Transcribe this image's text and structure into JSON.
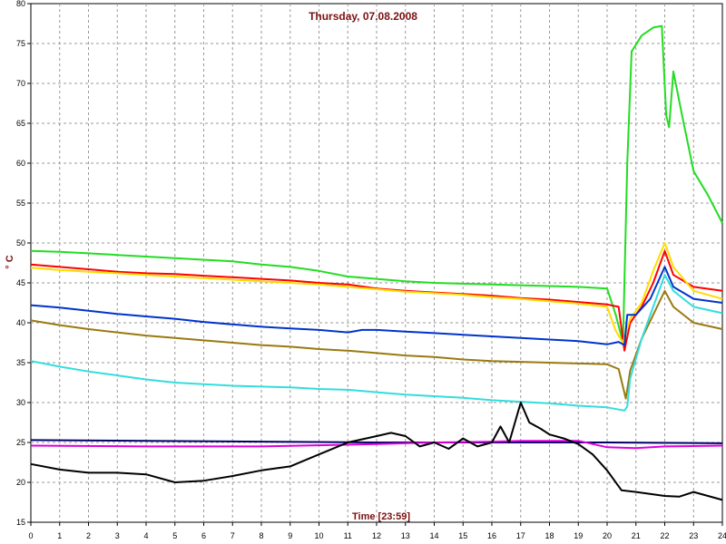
{
  "chart_data": {
    "type": "line",
    "title": "Thursday, 07.08.2008",
    "xlabel": "Time [23:59]",
    "ylabel": "° C",
    "xlim": [
      0,
      24
    ],
    "ylim": [
      15,
      80
    ],
    "x_ticks": [
      0,
      1,
      2,
      3,
      4,
      5,
      6,
      7,
      8,
      9,
      10,
      11,
      12,
      13,
      14,
      15,
      16,
      17,
      18,
      19,
      20,
      21,
      22,
      23,
      24
    ],
    "y_ticks": [
      15,
      20,
      25,
      30,
      35,
      40,
      45,
      50,
      55,
      60,
      65,
      70,
      75,
      80
    ],
    "grid": true,
    "series": [
      {
        "color": "#22dd22",
        "points": [
          [
            0,
            49
          ],
          [
            1,
            48.9
          ],
          [
            2,
            48.7
          ],
          [
            3,
            48.5
          ],
          [
            4,
            48.3
          ],
          [
            5,
            48.1
          ],
          [
            6,
            47.9
          ],
          [
            7,
            47.7
          ],
          [
            8,
            47.3
          ],
          [
            9,
            47
          ],
          [
            10,
            46.5
          ],
          [
            11,
            45.8
          ],
          [
            12,
            45.5
          ],
          [
            13,
            45.2
          ],
          [
            14,
            45
          ],
          [
            15,
            44.9
          ],
          [
            16,
            44.8
          ],
          [
            17,
            44.7
          ],
          [
            18,
            44.6
          ],
          [
            19,
            44.5
          ],
          [
            20,
            44.3
          ],
          [
            20.3,
            41
          ],
          [
            20.55,
            37.5
          ],
          [
            20.7,
            60
          ],
          [
            20.85,
            74
          ],
          [
            21.2,
            76
          ],
          [
            21.6,
            77
          ],
          [
            21.9,
            77.2
          ],
          [
            22.05,
            66
          ],
          [
            22.15,
            64.5
          ],
          [
            22.3,
            71.5
          ],
          [
            22.6,
            66
          ],
          [
            23,
            59
          ],
          [
            23.5,
            56
          ],
          [
            24,
            52.5
          ]
        ]
      },
      {
        "color": "#ff0000",
        "points": [
          [
            0,
            47.3
          ],
          [
            1,
            47
          ],
          [
            2,
            46.7
          ],
          [
            3,
            46.4
          ],
          [
            4,
            46.2
          ],
          [
            5,
            46.1
          ],
          [
            6,
            45.9
          ],
          [
            7,
            45.7
          ],
          [
            8,
            45.5
          ],
          [
            9,
            45.3
          ],
          [
            10,
            45
          ],
          [
            11,
            44.8
          ],
          [
            12,
            44.3
          ],
          [
            13,
            44
          ],
          [
            14,
            43.8
          ],
          [
            15,
            43.6
          ],
          [
            16,
            43.4
          ],
          [
            17,
            43.1
          ],
          [
            18,
            42.9
          ],
          [
            19,
            42.6
          ],
          [
            20,
            42.3
          ],
          [
            20.4,
            42
          ],
          [
            20.6,
            36.5
          ],
          [
            20.8,
            40
          ],
          [
            21.2,
            42
          ],
          [
            21.6,
            45
          ],
          [
            22,
            49
          ],
          [
            22.3,
            46
          ],
          [
            23,
            44.5
          ],
          [
            24,
            44
          ]
        ]
      },
      {
        "color": "#ffdd00",
        "points": [
          [
            0,
            46.9
          ],
          [
            1,
            46.6
          ],
          [
            2,
            46.4
          ],
          [
            3,
            46.2
          ],
          [
            4,
            46
          ],
          [
            5,
            45.8
          ],
          [
            6,
            45.6
          ],
          [
            7,
            45.4
          ],
          [
            8,
            45.2
          ],
          [
            9,
            45
          ],
          [
            10,
            44.8
          ],
          [
            11,
            44.5
          ],
          [
            12,
            44.2
          ],
          [
            13,
            43.9
          ],
          [
            14,
            43.7
          ],
          [
            15,
            43.5
          ],
          [
            16,
            43.2
          ],
          [
            17,
            43
          ],
          [
            18,
            42.7
          ],
          [
            19,
            42.4
          ],
          [
            20,
            42
          ],
          [
            20.3,
            39
          ],
          [
            20.55,
            37.5
          ],
          [
            20.8,
            40.5
          ],
          [
            21.2,
            42.5
          ],
          [
            21.6,
            46.5
          ],
          [
            22,
            50
          ],
          [
            22.3,
            47
          ],
          [
            23,
            44
          ],
          [
            24,
            43
          ]
        ]
      },
      {
        "color": "#0033cc",
        "points": [
          [
            0,
            42.2
          ],
          [
            1,
            41.9
          ],
          [
            2,
            41.5
          ],
          [
            3,
            41.1
          ],
          [
            4,
            40.8
          ],
          [
            5,
            40.5
          ],
          [
            6,
            40.1
          ],
          [
            7,
            39.8
          ],
          [
            8,
            39.5
          ],
          [
            9,
            39.3
          ],
          [
            10,
            39.1
          ],
          [
            11,
            38.8
          ],
          [
            11.5,
            39.1
          ],
          [
            12,
            39.1
          ],
          [
            13,
            38.9
          ],
          [
            14,
            38.7
          ],
          [
            15,
            38.5
          ],
          [
            16,
            38.3
          ],
          [
            17,
            38.1
          ],
          [
            18,
            37.9
          ],
          [
            19,
            37.7
          ],
          [
            20,
            37.3
          ],
          [
            20.4,
            37.6
          ],
          [
            20.6,
            37.2
          ],
          [
            20.7,
            41
          ],
          [
            21,
            41
          ],
          [
            21.5,
            43
          ],
          [
            22,
            47
          ],
          [
            22.3,
            44.5
          ],
          [
            23,
            43
          ],
          [
            24,
            42.5
          ]
        ]
      },
      {
        "color": "#997a10",
        "points": [
          [
            0,
            40.3
          ],
          [
            1,
            39.7
          ],
          [
            2,
            39.2
          ],
          [
            3,
            38.8
          ],
          [
            4,
            38.4
          ],
          [
            5,
            38.1
          ],
          [
            6,
            37.8
          ],
          [
            7,
            37.5
          ],
          [
            8,
            37.2
          ],
          [
            9,
            37
          ],
          [
            10,
            36.7
          ],
          [
            11,
            36.5
          ],
          [
            12,
            36.2
          ],
          [
            13,
            35.9
          ],
          [
            14,
            35.7
          ],
          [
            15,
            35.4
          ],
          [
            16,
            35.2
          ],
          [
            17,
            35.1
          ],
          [
            18,
            35
          ],
          [
            19,
            34.9
          ],
          [
            20,
            34.8
          ],
          [
            20.4,
            34.2
          ],
          [
            20.65,
            30.5
          ],
          [
            20.8,
            34
          ],
          [
            21.2,
            38
          ],
          [
            21.6,
            41
          ],
          [
            22,
            44
          ],
          [
            22.3,
            42
          ],
          [
            23,
            40
          ],
          [
            24,
            39.2
          ]
        ]
      },
      {
        "color": "#33dddd",
        "points": [
          [
            0,
            35.2
          ],
          [
            1,
            34.5
          ],
          [
            2,
            33.9
          ],
          [
            3,
            33.4
          ],
          [
            4,
            32.9
          ],
          [
            5,
            32.5
          ],
          [
            6,
            32.3
          ],
          [
            7,
            32.1
          ],
          [
            8,
            32
          ],
          [
            9,
            31.9
          ],
          [
            10,
            31.7
          ],
          [
            11,
            31.6
          ],
          [
            12,
            31.3
          ],
          [
            13,
            31
          ],
          [
            14,
            30.8
          ],
          [
            15,
            30.6
          ],
          [
            16,
            30.3
          ],
          [
            17,
            30.1
          ],
          [
            18,
            29.9
          ],
          [
            19,
            29.6
          ],
          [
            20,
            29.4
          ],
          [
            20.6,
            29
          ],
          [
            20.7,
            29.5
          ],
          [
            20.8,
            33
          ],
          [
            21.2,
            38
          ],
          [
            21.6,
            42
          ],
          [
            22,
            46
          ],
          [
            22.3,
            44
          ],
          [
            23,
            42
          ],
          [
            24,
            41.2
          ]
        ]
      },
      {
        "color": "#000066",
        "points": [
          [
            0,
            25.3
          ],
          [
            4,
            25.2
          ],
          [
            8,
            25.1
          ],
          [
            12,
            25
          ],
          [
            16,
            25
          ],
          [
            20,
            25
          ],
          [
            24,
            24.9
          ]
        ]
      },
      {
        "color": "#dd00dd",
        "points": [
          [
            0,
            24.6
          ],
          [
            4,
            24.5
          ],
          [
            8,
            24.5
          ],
          [
            12,
            24.8
          ],
          [
            14,
            25
          ],
          [
            16,
            25.1
          ],
          [
            17,
            25.2
          ],
          [
            18,
            25.2
          ],
          [
            19,
            25.2
          ],
          [
            20,
            24.4
          ],
          [
            21,
            24.3
          ],
          [
            22,
            24.5
          ],
          [
            24,
            24.6
          ]
        ]
      },
      {
        "color": "#000000",
        "points": [
          [
            0,
            22.3
          ],
          [
            1,
            21.6
          ],
          [
            2,
            21.2
          ],
          [
            3,
            21.2
          ],
          [
            4,
            21
          ],
          [
            5,
            20
          ],
          [
            6,
            20.2
          ],
          [
            7,
            20.8
          ],
          [
            8,
            21.5
          ],
          [
            9,
            22
          ],
          [
            10,
            23.5
          ],
          [
            11,
            25
          ],
          [
            12,
            25.8
          ],
          [
            12.5,
            26.2
          ],
          [
            13,
            25.8
          ],
          [
            13.5,
            24.5
          ],
          [
            14,
            25
          ],
          [
            14.5,
            24.2
          ],
          [
            15,
            25.5
          ],
          [
            15.5,
            24.5
          ],
          [
            16,
            25
          ],
          [
            16.3,
            27
          ],
          [
            16.6,
            25
          ],
          [
            17,
            30
          ],
          [
            17.3,
            27.5
          ],
          [
            17.7,
            26.7
          ],
          [
            18,
            26
          ],
          [
            18.5,
            25.5
          ],
          [
            19,
            24.8
          ],
          [
            19.5,
            23.5
          ],
          [
            20,
            21.5
          ],
          [
            20.5,
            19
          ],
          [
            21,
            18.8
          ],
          [
            22,
            18.3
          ],
          [
            22.5,
            18.2
          ],
          [
            23,
            18.8
          ],
          [
            24,
            17.8
          ]
        ]
      }
    ]
  }
}
